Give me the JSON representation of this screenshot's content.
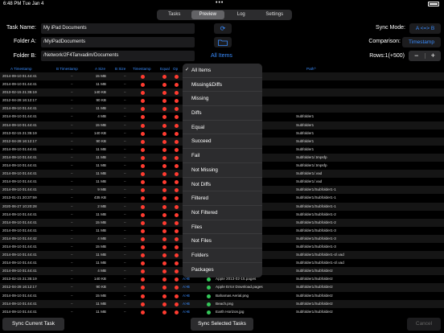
{
  "status": {
    "time": "6:48 PM",
    "date": "Tue Jan 4"
  },
  "tabs": [
    {
      "label": "Tasks",
      "active": false
    },
    {
      "label": "Preview",
      "active": true
    },
    {
      "label": "Log",
      "active": false
    },
    {
      "label": "Settings",
      "active": false
    }
  ],
  "form": {
    "task_label": "Task Name:",
    "task_value": "My iPad Documents",
    "folder_a_label": "Folder A:",
    "folder_a_value": "/MyiPadDocuments",
    "folder_b_label": "Folder B:",
    "folder_b_value": "/Network/2F4Tanvadim/Documents",
    "filter_button": "All Items",
    "sync_mode_label": "Sync Mode:",
    "sync_mode_value": "A <=> B",
    "comparison_label": "Comparison:",
    "comparison_value": "Timestamp",
    "rows_label": "Rows:1(+500)",
    "minus": "−",
    "plus": "+"
  },
  "table": {
    "headers": [
      "A Timestamp",
      "B Timestamp",
      "A Size",
      "B Size",
      "Timestamp",
      "Equal",
      "Op",
      "Path^"
    ],
    "rows": [
      [
        "2014-09-10 01:44:41",
        "–",
        "15 MB",
        "–",
        "",
        ""
      ],
      [
        "2014-09-10 01:44:41",
        "–",
        "11 MB",
        "–",
        "",
        ""
      ],
      [
        "2013-02-15 21:35:19",
        "–",
        "140 KB",
        "–",
        "",
        ""
      ],
      [
        "2012-04-28 16:12:17",
        "–",
        "90 KB",
        "–",
        "",
        ""
      ],
      [
        "2014-09-10 01:44:41",
        "–",
        "11 MB",
        "–",
        "",
        ""
      ],
      [
        "2014-09-10 01:44:41",
        "–",
        "4 MB",
        "–",
        "",
        "Subfolder1"
      ],
      [
        "2014-09-10 01:44:41",
        "–",
        "15 MB",
        "–",
        "",
        "Subfolder1"
      ],
      [
        "2013-02-15 21:35:19",
        "–",
        "140 KB",
        "–",
        "",
        "Subfolder1"
      ],
      [
        "2012-04-28 16:12:17",
        "–",
        "90 KB",
        "–",
        "",
        "Subfolder1"
      ],
      [
        "2014-09-10 01:44:41",
        "–",
        "11 MB",
        "–",
        "",
        "Subfolder1"
      ],
      [
        "2014-09-10 01:44:41",
        "–",
        "11 MB",
        "–",
        "",
        "Subfolder1/.tmpsfp"
      ],
      [
        "2014-09-10 01:44:41",
        "–",
        "11 MB",
        "–",
        "",
        "Subfolder1/.tmpsfp"
      ],
      [
        "2014-09-10 01:44:41",
        "–",
        "11 MB",
        "–",
        "",
        "Subfolder1/.vad"
      ],
      [
        "2014-09-10 01:44:41",
        "–",
        "11 MB",
        "–",
        "",
        "Subfolder1/.vad"
      ],
      [
        "2014-09-10 01:44:41",
        "–",
        "9 MB",
        "–",
        "",
        "Subfolder1/Subfolder1-1"
      ],
      [
        "2013-01-21 20:37:59",
        "–",
        "435 KB",
        "–",
        "",
        "Subfolder1/Subfolder1-1"
      ],
      [
        "2020-06-27 10:20:28",
        "–",
        "2 MB",
        "–",
        "",
        "Subfolder1/Subfolder1-1"
      ],
      [
        "2014-09-10 01:44:41",
        "–",
        "11 MB",
        "–",
        "",
        "Subfolder1/Subfolder1-2"
      ],
      [
        "2014-09-10 01:44:41",
        "–",
        "15 MB",
        "–",
        "",
        "Subfolder1/Subfolder1-2"
      ],
      [
        "2014-09-10 01:44:41",
        "–",
        "11 MB",
        "–",
        "",
        "Subfolder1/Subfolder1-3"
      ],
      [
        "2014-09-10 01:44:42",
        "–",
        "4 MB",
        "–",
        "",
        "Subfolder1/Subfolder1-3"
      ],
      [
        "2014-09-10 01:44:41",
        "–",
        "15 MB",
        "–",
        "",
        "Subfolder1/Subfolder1-3"
      ],
      [
        "2014-09-10 01:44:41",
        "–",
        "11 MB",
        "–",
        "",
        "Subfolder1/Subfolder1-4/.vad"
      ],
      [
        "2014-09-10 01:44:41",
        "–",
        "11 MB",
        "–",
        "",
        "Subfolder1/Subfolder1-4/.vad"
      ],
      [
        "2014-09-10 01:44:41",
        "–",
        "4 MB",
        "–",
        "Antelope Canyon.jpg",
        "Subfolder1/Subfolder2"
      ],
      [
        "2013-02-15 21:35:19",
        "–",
        "140 KB",
        "–",
        "Apple 2013-02-15.pages",
        "Subfolder1/Subfolder2"
      ],
      [
        "2012-04-28 16:12:17",
        "–",
        "90 KB",
        "–",
        "Apple Error Download.pages",
        "Subfolder1/Subfolder2"
      ],
      [
        "2014-09-10 01:44:41",
        "–",
        "15 MB",
        "–",
        "Bahamas Aerial.png",
        "Subfolder1/Subfolder2"
      ],
      [
        "2014-09-10 01:44:41",
        "–",
        "11 MB",
        "–",
        "Beach.png",
        "Subfolder1/Subfolder2"
      ],
      [
        "2014-09-10 01:44:41",
        "–",
        "11 MB",
        "–",
        "Earth Horizon.jpg",
        "Subfolder1/Subfolder2"
      ]
    ],
    "op_value": "A>B",
    "partial_file_fragments": [
      "...pages",
      "...pages"
    ]
  },
  "dropdown": {
    "items": [
      {
        "label": "All Items",
        "checked": true
      },
      {
        "label": "Missing&Diffs"
      },
      {
        "label": "Missing"
      },
      {
        "label": "Diffs"
      },
      {
        "label": "Equal"
      },
      {
        "label": "Succeed"
      },
      {
        "label": "Fail"
      },
      {
        "label": "Not Missing"
      },
      {
        "label": "Not Diffs"
      },
      {
        "label": "Filtered"
      },
      {
        "label": "Not Filtered"
      },
      {
        "label": "Files"
      },
      {
        "label": "Not Files"
      },
      {
        "label": "Folders"
      },
      {
        "label": "Packages"
      }
    ],
    "check_glyph": "✓"
  },
  "bottom": {
    "sync_current": "Sync Current Task",
    "sync_selected": "Sync Selected Tasks",
    "cancel": "Cancel"
  },
  "colors": {
    "accent": "#3a8dff",
    "red": "#ff3b30",
    "green": "#34c759"
  }
}
